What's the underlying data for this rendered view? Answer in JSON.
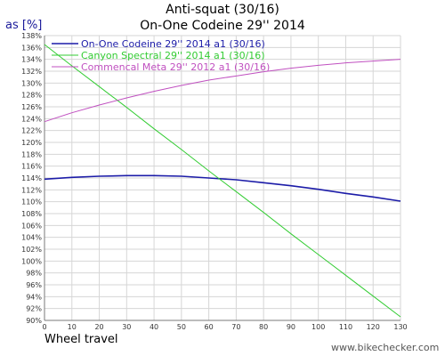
{
  "chart_data": {
    "type": "line",
    "title": "Anti-squat (30/16)",
    "subtitle": "On-One Codeine 29'' 2014",
    "ylabel": "as [%]",
    "xlabel": "Wheel travel",
    "xlim": [
      0,
      130
    ],
    "ylim": [
      90,
      138
    ],
    "x_ticks": [
      0,
      10,
      20,
      30,
      40,
      50,
      60,
      70,
      80,
      90,
      100,
      110,
      120,
      130
    ],
    "y_ticks": [
      90,
      92,
      94,
      96,
      98,
      100,
      102,
      104,
      106,
      108,
      110,
      112,
      114,
      116,
      118,
      120,
      122,
      124,
      126,
      128,
      130,
      132,
      134,
      136,
      138
    ],
    "y_tick_suffix": "%",
    "grid": true,
    "legend_position": "top-left",
    "x": [
      0,
      10,
      20,
      30,
      40,
      50,
      60,
      70,
      80,
      90,
      100,
      110,
      120,
      130
    ],
    "series": [
      {
        "name": "On-One Codeine 29'' 2014 a1 (30/16)",
        "color": "#1c1ca8",
        "values": [
          113.8,
          114.1,
          114.3,
          114.4,
          114.4,
          114.3,
          114.0,
          113.7,
          113.2,
          112.7,
          112.1,
          111.4,
          110.8,
          110.1
        ]
      },
      {
        "name": "Canyon Spectral 29'' 2014 a1 (30/16)",
        "color": "#33cc33",
        "values": [
          136.5,
          132.9,
          129.4,
          125.9,
          122.3,
          118.8,
          115.2,
          111.7,
          108.2,
          104.6,
          101.1,
          97.6,
          94.1,
          90.6
        ]
      },
      {
        "name": "Commencal Meta 29'' 2012 a1 (30/16)",
        "color": "#c050c0",
        "values": [
          123.5,
          125.0,
          126.3,
          127.5,
          128.6,
          129.6,
          130.5,
          131.2,
          131.9,
          132.5,
          133.0,
          133.4,
          133.7,
          134.0
        ]
      }
    ]
  },
  "footer": {
    "credit": "www.bikechecker.com"
  }
}
